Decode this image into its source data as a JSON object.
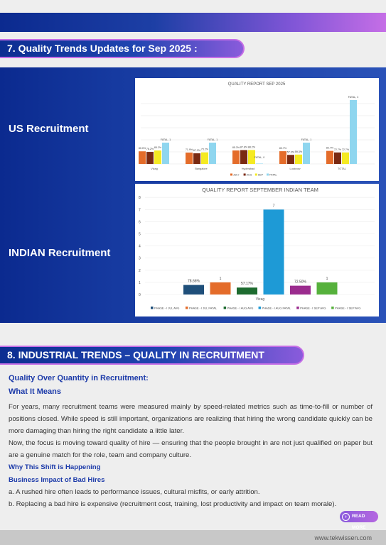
{
  "section7": {
    "title": "7. Quality Trends Updates for Sep 2025 :"
  },
  "us_label": "US Recruitment",
  "indian_label": "INDIAN Recruitment",
  "chart_data": [
    {
      "type": "bar",
      "title": "QUALITY REPORT SEP 2025",
      "categories": [
        "Vizag",
        "Bangalore",
        "Hyderabad",
        "Lucknow",
        "TOTAL"
      ],
      "series": [
        {
          "name": "JULY",
          "color": "#e46c2a",
          "values": [
            80.0,
            71.9,
            85.3,
            80.7,
            82.7
          ],
          "labels": [
            "80.0%",
            "71.9%",
            "85.3%",
            "80.7%",
            "82.7%"
          ]
        },
        {
          "name": "AUG",
          "color": "#7a2a12",
          "values": [
            76.2,
            67.3,
            87.8,
            57.3,
            72.7
          ],
          "labels": [
            "76.2%",
            "67.3%",
            "87.8%",
            "57.3%",
            "72.7%"
          ]
        },
        {
          "name": "SEP",
          "color": "#f5ea22",
          "values": [
            85.2,
            73.2,
            88.2,
            59.3,
            72.7
          ],
          "labels": [
            "85.2%",
            "73.2%",
            "88.2%",
            "59.3%",
            "72.7%"
          ]
        },
        {
          "name": "FATAL",
          "color": "#8fd6ef",
          "values": [
            1,
            1,
            0,
            1,
            3
          ],
          "labels": [
            "FATAL, 1",
            "FATAL, 1",
            "FATAL, 0",
            "FATAL, 1",
            "FATAL, 3"
          ]
        }
      ],
      "legend": "bottom"
    },
    {
      "type": "bar",
      "title": "QUALITY REPORT SEPTEMBER INDIAN TEAM",
      "categories": [
        "Vizag"
      ],
      "ylim": [
        0,
        8
      ],
      "yticks": [
        "0",
        "1",
        "2",
        "3",
        "4",
        "5",
        "6",
        "7",
        "8"
      ],
      "series": [
        {
          "name": "PHASE - I JUL AVG",
          "color": "#1f4f7a",
          "value": 0.7866,
          "label": "78.66%"
        },
        {
          "name": "PHASE - I JUL FATAL",
          "color": "#e46c2a",
          "value": 1,
          "label": "1"
        },
        {
          "name": "PHASE - I AUG AVG",
          "color": "#1d6b2f",
          "value": 0.5717,
          "label": "57.17%"
        },
        {
          "name": "PHASE - I AUG FATAL",
          "color": "#1e9ad6",
          "value": 7,
          "label": "7"
        },
        {
          "name": "PHASE - I SEP AVG",
          "color": "#9b2c8e",
          "value": 0.725,
          "label": "72.50%"
        },
        {
          "name": "PHASE - I SEP AVG",
          "color": "#56b13c",
          "value": 1,
          "label": "1"
        }
      ],
      "legend": "bottom"
    }
  ],
  "section8": {
    "title": "8. INDUSTRIAL TRENDS – QUALITY IN RECRUITMENT",
    "subtitle": "Quality Over Quantity in Recruitment:",
    "what_heading": "What It Means",
    "para1": "For years, many recruitment teams were measured mainly by speed-related metrics such as time-to-fill or number of positions closed. While speed is still important, organizations are realizing that hiring the wrong candidate quickly can be more damaging than hiring the right candidate a little later.",
    "para2": "Now, the focus is moving toward quality of hire — ensuring that the people brought in are not just qualified on paper but are a genuine match for the role, team and company culture.",
    "why_heading": "Why This Shift is Happening",
    "impact_heading": "Business Impact of Bad Hires",
    "item_a": "a.  A rushed hire often leads to performance issues, cultural misfits, or early attrition.",
    "item_b": "b.  Replacing a bad hire is expensive (recruitment cost, training, lost productivity and impact on team morale).",
    "read_more": "READ MORE"
  },
  "footer": {
    "url": "www.tekwissen.com"
  }
}
